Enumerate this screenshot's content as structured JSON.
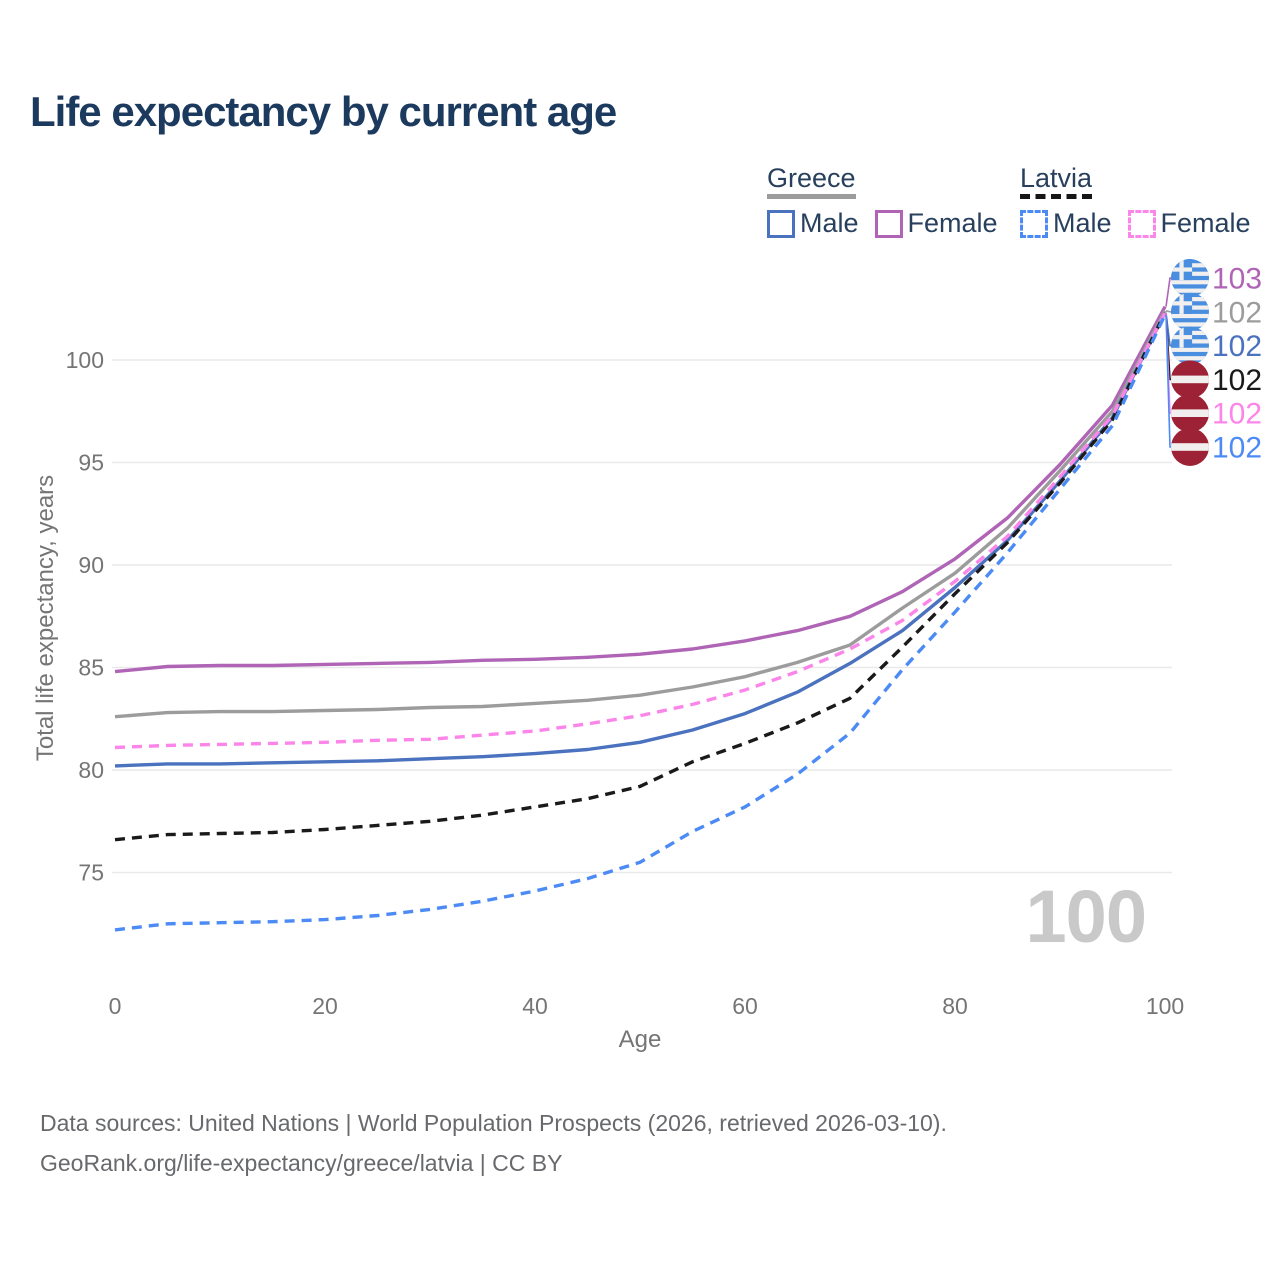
{
  "title": "Life expectancy by current age",
  "legend": {
    "groups": [
      {
        "label": "Greece",
        "line_style": "solid",
        "line_color": "#9c9c9c",
        "items": [
          {
            "label": "Male",
            "color": "#4a72be",
            "style": "solid"
          },
          {
            "label": "Female",
            "color": "#af64b5",
            "style": "solid"
          }
        ]
      },
      {
        "label": "Latvia",
        "line_style": "dashed",
        "line_color": "#161616",
        "items": [
          {
            "label": "Male",
            "color": "#4c8bf5",
            "style": "dashed"
          },
          {
            "label": "Female",
            "color": "#fc85e9",
            "style": "dashed"
          }
        ]
      }
    ]
  },
  "chart_data": {
    "type": "line",
    "title": "Life expectancy by current age",
    "xlabel": "Age",
    "ylabel": "Total life expectancy, years",
    "x_ticks": [
      0,
      20,
      40,
      60,
      80,
      100
    ],
    "y_ticks": [
      75,
      80,
      85,
      90,
      95,
      100
    ],
    "xlim": [
      0,
      100
    ],
    "ylim": [
      71.5,
      103.5
    ],
    "grid": "horizontal",
    "x": [
      0,
      5,
      10,
      15,
      20,
      25,
      30,
      35,
      40,
      45,
      50,
      55,
      60,
      65,
      70,
      75,
      80,
      85,
      90,
      95,
      100
    ],
    "series": [
      {
        "name": "Greece Female",
        "country": "greece",
        "sex": "female",
        "color": "#af64b5",
        "dashed": false,
        "end_label": "103",
        "values": [
          84.8,
          85.05,
          85.1,
          85.1,
          85.15,
          85.2,
          85.25,
          85.35,
          85.4,
          85.5,
          85.65,
          85.9,
          86.3,
          86.8,
          87.5,
          88.7,
          90.3,
          92.3,
          94.9,
          97.8,
          102.6
        ]
      },
      {
        "name": "Greece",
        "country": "greece",
        "sex": "total",
        "color": "#9c9c9c",
        "dashed": false,
        "end_label": "102",
        "values": [
          82.6,
          82.8,
          82.85,
          82.85,
          82.9,
          82.95,
          83.05,
          83.1,
          83.25,
          83.4,
          83.65,
          84.05,
          84.55,
          85.25,
          86.1,
          87.9,
          89.6,
          91.8,
          94.6,
          97.5,
          102.4
        ]
      },
      {
        "name": "Greece Male",
        "country": "greece",
        "sex": "male",
        "color": "#4a72be",
        "dashed": false,
        "end_label": "102",
        "values": [
          80.2,
          80.3,
          80.3,
          80.35,
          80.4,
          80.45,
          80.55,
          80.65,
          80.8,
          81.0,
          81.35,
          81.95,
          82.75,
          83.8,
          85.2,
          86.8,
          88.9,
          91.2,
          94.1,
          97.2,
          102.3
        ]
      },
      {
        "name": "Latvia",
        "country": "latvia",
        "sex": "total",
        "color": "#1a1a1a",
        "dashed": true,
        "end_label": "102",
        "values": [
          76.6,
          76.85,
          76.9,
          76.95,
          77.1,
          77.3,
          77.5,
          77.8,
          78.2,
          78.6,
          79.2,
          80.4,
          81.3,
          82.3,
          83.5,
          86.0,
          88.6,
          91.1,
          94.0,
          97.1,
          102.3
        ]
      },
      {
        "name": "Latvia Female",
        "country": "latvia",
        "sex": "female",
        "color": "#fc85e9",
        "dashed": true,
        "end_label": "102",
        "values": [
          81.1,
          81.2,
          81.25,
          81.3,
          81.35,
          81.45,
          81.5,
          81.7,
          81.9,
          82.25,
          82.65,
          83.2,
          83.9,
          84.8,
          85.9,
          87.3,
          89.2,
          91.4,
          94.3,
          97.3,
          102.3
        ]
      },
      {
        "name": "Latvia Male",
        "country": "latvia",
        "sex": "male",
        "color": "#4c8bf5",
        "dashed": true,
        "end_label": "102",
        "values": [
          72.2,
          72.5,
          72.55,
          72.6,
          72.7,
          72.9,
          73.2,
          73.6,
          74.1,
          74.7,
          75.5,
          77.0,
          78.2,
          79.8,
          81.8,
          84.9,
          87.7,
          90.6,
          93.7,
          96.8,
          102.2
        ]
      }
    ],
    "flag_colors": {
      "greece_blue": "#4a8ee0",
      "latvia_red": "#9d2235",
      "stripe_white": "#f2efef"
    }
  },
  "watermark": "100",
  "footer": {
    "line1": "Data sources: United Nations | World Population Prospects (2026, retrieved 2026-03-10).",
    "line2": "GeoRank.org/life-expectancy/greece/latvia | CC BY"
  }
}
